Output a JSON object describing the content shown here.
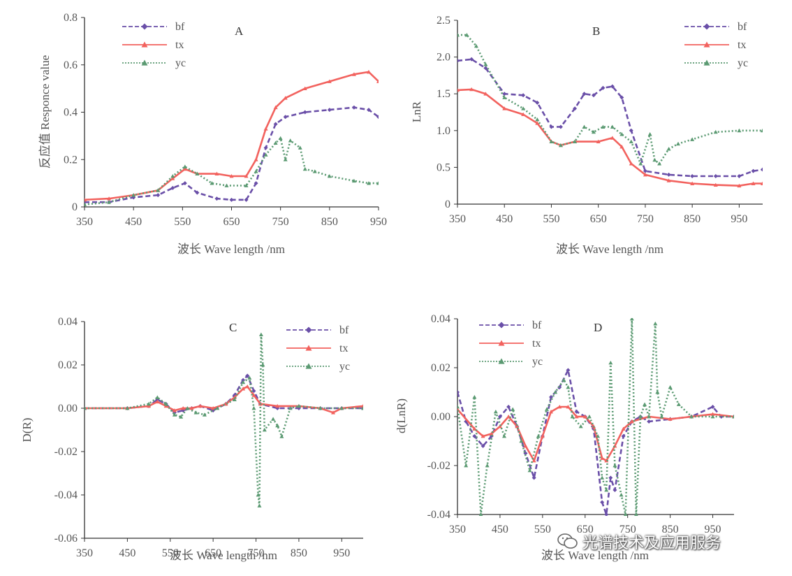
{
  "figure": {
    "x_title": "波长  Wave length /nm",
    "colors": {
      "bf": "#6a4fa8",
      "tx": "#f2625e",
      "yc": "#5b9a72"
    }
  },
  "watermark": {
    "text": "光谱技术及应用服务",
    "icon": "wechat-icon"
  },
  "chart_data": [
    {
      "panel": "A",
      "type": "line",
      "xlabel": "波长  Wave length /nm",
      "ylabel": "反应值  Responce value",
      "xlim": [
        350,
        950
      ],
      "ylim": [
        0,
        0.8
      ],
      "xticks": [
        350,
        450,
        550,
        650,
        750,
        850,
        950
      ],
      "yticks": [
        0,
        0.2,
        0.4,
        0.6,
        0.8
      ],
      "ytick_labels": [
        "0",
        "0.2",
        "0.4",
        "0.6",
        "0.8"
      ],
      "legend": [
        "bf",
        "tx",
        "yc"
      ],
      "legend_position": "top-left",
      "series": [
        {
          "name": "bf",
          "x": [
            350,
            400,
            450,
            500,
            530,
            555,
            580,
            620,
            650,
            680,
            700,
            720,
            740,
            760,
            800,
            850,
            900,
            930,
            950
          ],
          "y": [
            0.02,
            0.02,
            0.04,
            0.05,
            0.08,
            0.1,
            0.06,
            0.035,
            0.03,
            0.03,
            0.1,
            0.25,
            0.35,
            0.38,
            0.4,
            0.41,
            0.42,
            0.41,
            0.38
          ]
        },
        {
          "name": "tx",
          "x": [
            350,
            400,
            450,
            500,
            530,
            555,
            580,
            620,
            650,
            680,
            700,
            720,
            740,
            760,
            800,
            850,
            900,
            930,
            950
          ],
          "y": [
            0.03,
            0.035,
            0.05,
            0.07,
            0.12,
            0.16,
            0.14,
            0.14,
            0.13,
            0.13,
            0.2,
            0.33,
            0.42,
            0.46,
            0.5,
            0.53,
            0.56,
            0.57,
            0.53
          ]
        },
        {
          "name": "yc",
          "x": [
            350,
            400,
            450,
            500,
            530,
            555,
            580,
            610,
            640,
            680,
            700,
            720,
            740,
            750,
            760,
            770,
            790,
            800,
            820,
            850,
            900,
            930,
            950
          ],
          "y": [
            0.01,
            0.02,
            0.05,
            0.07,
            0.13,
            0.17,
            0.14,
            0.1,
            0.09,
            0.09,
            0.15,
            0.22,
            0.27,
            0.29,
            0.2,
            0.28,
            0.25,
            0.16,
            0.15,
            0.13,
            0.11,
            0.1,
            0.1
          ]
        }
      ]
    },
    {
      "panel": "B",
      "type": "line",
      "xlabel": "波长  Wave length /nm",
      "ylabel": "LnR",
      "xlim": [
        350,
        1000
      ],
      "ylim": [
        0,
        2.5
      ],
      "xticks": [
        350,
        450,
        550,
        650,
        750,
        850,
        950
      ],
      "yticks": [
        0,
        0.5,
        1.0,
        1.5,
        2.0,
        2.5
      ],
      "ytick_labels": [
        "0",
        "0.5",
        "1.0",
        "1.5",
        "2.0",
        "2.5"
      ],
      "legend": [
        "bf",
        "tx",
        "yc"
      ],
      "legend_position": "top-right",
      "series": [
        {
          "name": "bf",
          "x": [
            350,
            380,
            410,
            450,
            490,
            520,
            550,
            570,
            600,
            620,
            640,
            660,
            680,
            700,
            720,
            750,
            800,
            850,
            900,
            950,
            980,
            1000
          ],
          "y": [
            1.95,
            1.97,
            1.85,
            1.5,
            1.48,
            1.38,
            1.05,
            1.05,
            1.3,
            1.5,
            1.48,
            1.58,
            1.6,
            1.45,
            1.0,
            0.45,
            0.4,
            0.38,
            0.38,
            0.38,
            0.45,
            0.47
          ]
        },
        {
          "name": "tx",
          "x": [
            350,
            380,
            410,
            450,
            490,
            520,
            550,
            570,
            600,
            650,
            680,
            700,
            720,
            750,
            800,
            850,
            900,
            950,
            980,
            1000
          ],
          "y": [
            1.55,
            1.56,
            1.5,
            1.3,
            1.22,
            1.1,
            0.85,
            0.8,
            0.85,
            0.85,
            0.9,
            0.78,
            0.55,
            0.4,
            0.32,
            0.28,
            0.26,
            0.25,
            0.28,
            0.28
          ]
        },
        {
          "name": "yc",
          "x": [
            350,
            370,
            390,
            410,
            450,
            490,
            520,
            550,
            570,
            600,
            620,
            640,
            660,
            680,
            700,
            720,
            740,
            760,
            770,
            780,
            800,
            820,
            850,
            900,
            950,
            1000
          ],
          "y": [
            2.3,
            2.3,
            2.15,
            1.9,
            1.45,
            1.3,
            1.15,
            0.85,
            0.8,
            0.85,
            1.05,
            0.98,
            1.05,
            1.05,
            0.95,
            0.85,
            0.55,
            0.95,
            0.6,
            0.55,
            0.75,
            0.82,
            0.88,
            0.98,
            1.0,
            1.0
          ]
        }
      ]
    },
    {
      "panel": "C",
      "type": "line",
      "xlabel": "波长  Wave length /nm",
      "ylabel": "D(R)",
      "xlim": [
        350,
        1000
      ],
      "ylim": [
        -0.06,
        0.04
      ],
      "xticks": [
        350,
        450,
        550,
        650,
        750,
        850,
        950
      ],
      "yticks": [
        -0.06,
        -0.04,
        -0.02,
        0.0,
        0.02,
        0.04
      ],
      "ytick_labels": [
        "-0.06",
        "-0.04",
        "-0.02",
        "0.00",
        "0.02",
        "0.04"
      ],
      "legend": [
        "bf",
        "tx",
        "yc"
      ],
      "legend_position": "top-right",
      "series": [
        {
          "name": "bf",
          "x": [
            350,
            450,
            500,
            520,
            540,
            560,
            580,
            600,
            620,
            650,
            680,
            700,
            720,
            730,
            745,
            760,
            800,
            850,
            900,
            950,
            1000
          ],
          "y": [
            0,
            0,
            0.001,
            0.004,
            0.002,
            -0.002,
            -0.001,
            0.0,
            0.001,
            -0.001,
            0.002,
            0.006,
            0.013,
            0.015,
            0.008,
            0.002,
            0.0,
            0.0,
            0.0,
            0.0,
            0.0
          ]
        },
        {
          "name": "tx",
          "x": [
            350,
            450,
            500,
            520,
            540,
            560,
            580,
            600,
            620,
            650,
            680,
            700,
            720,
            730,
            745,
            760,
            800,
            850,
            900,
            930,
            950,
            1000
          ],
          "y": [
            0,
            0,
            0.001,
            0.003,
            0.001,
            -0.001,
            0.0,
            0.0,
            0.001,
            0.0,
            0.002,
            0.005,
            0.009,
            0.01,
            0.006,
            0.002,
            0.001,
            0.001,
            0.0,
            -0.002,
            0.0,
            0.001
          ]
        },
        {
          "name": "yc",
          "x": [
            350,
            450,
            500,
            520,
            540,
            560,
            575,
            590,
            610,
            630,
            660,
            700,
            720,
            735,
            745,
            755,
            758,
            762,
            766,
            770,
            790,
            800,
            810,
            830,
            850,
            900,
            950,
            1000
          ],
          "y": [
            0,
            0,
            0.002,
            0.005,
            0.002,
            -0.003,
            -0.004,
            0.0,
            -0.002,
            -0.003,
            0.0,
            0.004,
            0.012,
            0.014,
            0.0,
            -0.04,
            -0.045,
            0.034,
            0.02,
            -0.01,
            -0.005,
            -0.008,
            -0.013,
            0.0,
            0.001,
            0.0,
            0.0,
            0.0
          ]
        }
      ]
    },
    {
      "panel": "D",
      "type": "line",
      "xlabel": "波长  Wave length /nm",
      "ylabel": "d(LnR)",
      "xlim": [
        350,
        1000
      ],
      "ylim": [
        -0.04,
        0.04
      ],
      "xticks": [
        350,
        450,
        550,
        650,
        750,
        850,
        950
      ],
      "yticks": [
        -0.04,
        -0.02,
        0.0,
        0.02,
        0.04
      ],
      "ytick_labels": [
        "-0.04",
        "-0.02",
        "0.00",
        "0.02",
        "0.04"
      ],
      "legend": [
        "bf",
        "tx",
        "yc"
      ],
      "legend_position": "top-left",
      "series": [
        {
          "name": "bf",
          "x": [
            350,
            370,
            390,
            410,
            430,
            450,
            470,
            490,
            510,
            530,
            550,
            570,
            590,
            610,
            630,
            650,
            670,
            690,
            700,
            710,
            720,
            740,
            760,
            780,
            800,
            850,
            900,
            950,
            970,
            1000
          ],
          "y": [
            0.01,
            -0.002,
            -0.008,
            -0.012,
            -0.008,
            0.0,
            0.004,
            -0.004,
            -0.015,
            -0.025,
            -0.008,
            0.008,
            0.012,
            0.019,
            0.002,
            0.0,
            -0.005,
            -0.035,
            -0.04,
            -0.025,
            -0.03,
            -0.008,
            -0.002,
            0.0,
            -0.002,
            -0.001,
            0.0,
            0.004,
            0.0,
            0.0
          ]
        },
        {
          "name": "tx",
          "x": [
            350,
            390,
            410,
            430,
            450,
            470,
            490,
            510,
            530,
            550,
            570,
            590,
            610,
            630,
            650,
            670,
            690,
            700,
            720,
            740,
            760,
            800,
            850,
            900,
            950,
            1000
          ],
          "y": [
            0.003,
            -0.005,
            -0.008,
            -0.007,
            -0.004,
            0.0,
            -0.004,
            -0.012,
            -0.018,
            -0.008,
            0.002,
            0.004,
            0.004,
            0.0,
            0.0,
            -0.004,
            -0.017,
            -0.018,
            -0.012,
            -0.005,
            -0.002,
            0.0,
            -0.001,
            0.0,
            0.001,
            0.0
          ]
        },
        {
          "name": "yc",
          "x": [
            350,
            370,
            390,
            405,
            420,
            440,
            460,
            480,
            500,
            520,
            540,
            560,
            580,
            600,
            610,
            620,
            640,
            660,
            680,
            690,
            700,
            710,
            720,
            735,
            745,
            760,
            770,
            780,
            790,
            800,
            815,
            820,
            830,
            850,
            870,
            900,
            950,
            1000
          ],
          "y": [
            0.004,
            -0.02,
            0.008,
            -0.04,
            -0.02,
            0.002,
            -0.008,
            0.003,
            -0.01,
            -0.022,
            -0.008,
            0.003,
            0.01,
            0.015,
            0.012,
            0.0,
            -0.004,
            0.0,
            -0.008,
            -0.025,
            -0.03,
            0.022,
            -0.02,
            -0.032,
            -0.04,
            0.04,
            -0.04,
            0.0,
            0.005,
            0.0,
            0.038,
            0.01,
            0.0,
            0.012,
            0.005,
            0.0,
            0.0,
            0.0
          ]
        }
      ]
    }
  ]
}
